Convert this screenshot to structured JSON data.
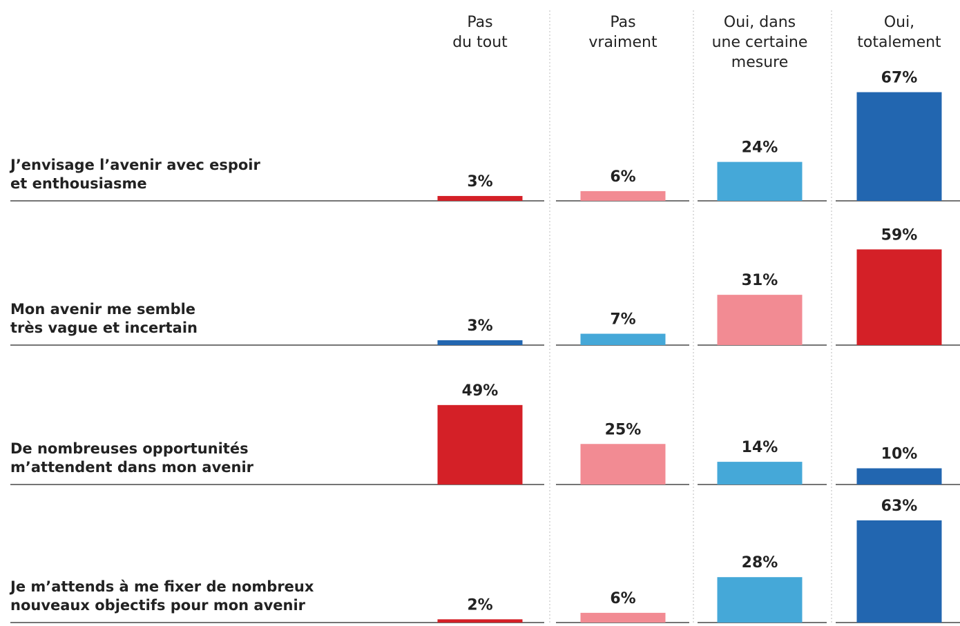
{
  "chart_data": {
    "type": "bar",
    "columns": [
      [
        "Pas",
        "du tout"
      ],
      [
        "Pas",
        "vraiment"
      ],
      [
        "Oui, dans",
        "une certaine",
        "mesure"
      ],
      [
        "Oui,",
        "totalement"
      ]
    ],
    "rows": [
      {
        "label": [
          "J’envisage l’avenir avec espoir",
          "et enthousiasme"
        ],
        "values": [
          3,
          6,
          24,
          67
        ],
        "value_labels": [
          "3%",
          "6%",
          "24%",
          "67%"
        ],
        "colors": [
          "#d42027",
          "#f28b93",
          "#45a8d8",
          "#2266b0"
        ]
      },
      {
        "label": [
          "Mon avenir me semble",
          "très vague et incertain"
        ],
        "values": [
          3,
          7,
          31,
          59
        ],
        "value_labels": [
          "3%",
          "7%",
          "31%",
          "59%"
        ],
        "colors": [
          "#2266b0",
          "#45a8d8",
          "#f28b93",
          "#d42027"
        ]
      },
      {
        "label": [
          "De nombreuses opportunités",
          "m’attendent dans mon avenir"
        ],
        "values": [
          49,
          25,
          14,
          10
        ],
        "value_labels": [
          "49%",
          "25%",
          "14%",
          "10%"
        ],
        "colors": [
          "#d42027",
          "#f28b93",
          "#45a8d8",
          "#2266b0"
        ]
      },
      {
        "label": [
          "Je m’attends à me fixer de nombreux",
          "nouveaux objectifs pour mon avenir"
        ],
        "values": [
          2,
          6,
          28,
          63
        ],
        "value_labels": [
          "2%",
          "6%",
          "28%",
          "63%"
        ],
        "colors": [
          "#d42027",
          "#f28b93",
          "#45a8d8",
          "#2266b0"
        ]
      }
    ]
  }
}
